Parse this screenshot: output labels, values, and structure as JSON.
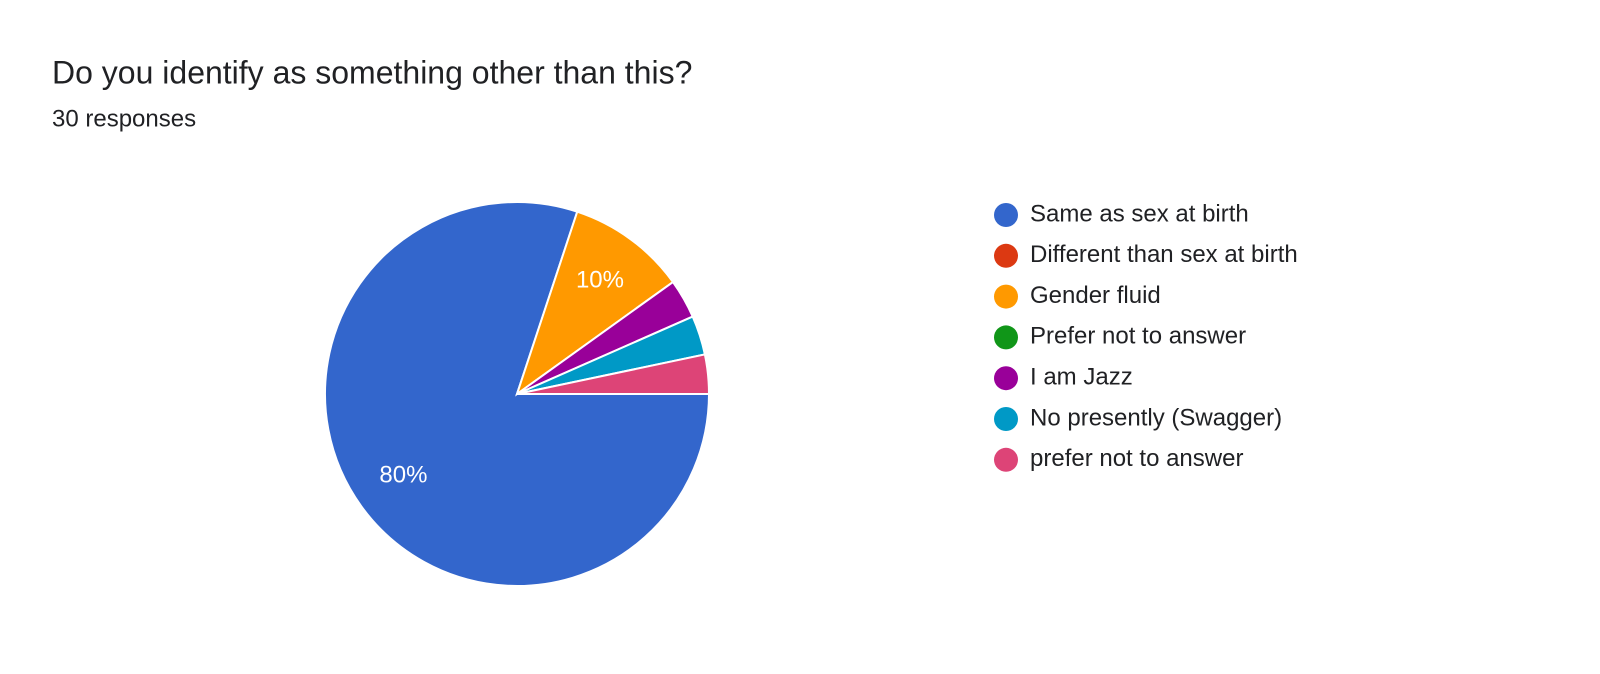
{
  "chart_data": {
    "type": "pie",
    "title": "Do you identify as something other than this?",
    "subtitle": "30 responses",
    "categories": [
      "Same as sex at birth",
      "Different than sex at birth",
      "Gender fluid",
      "Prefer not to answer",
      "I am Jazz",
      "No presently (Swagger)",
      "prefer not to answer"
    ],
    "values": [
      80,
      0,
      10,
      0,
      3.3,
      3.3,
      3.3
    ],
    "value_labels": [
      "80%",
      null,
      "10%",
      null,
      null,
      null,
      null
    ],
    "colors": [
      "#3366cc",
      "#dc3912",
      "#ff9900",
      "#109618",
      "#990099",
      "#0099c6",
      "#dd4477"
    ],
    "legend": "right"
  }
}
